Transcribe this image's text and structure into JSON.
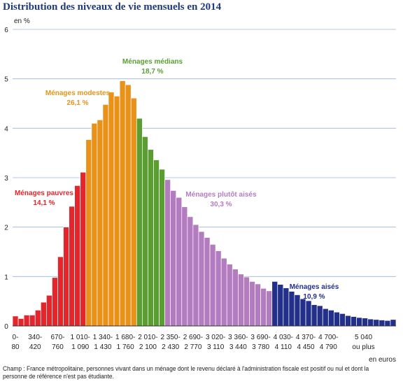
{
  "title": "Distribution des niveaux de vie mensuels en 2014",
  "note": "Champ : France métropolitaine, personnes vivant dans un ménage dont le revenu déclaré à l'administration fiscale est positif ou nul et dont la personne de référence n'est pas étudiante.",
  "chart_data": {
    "type": "bar",
    "ylabel": "en %",
    "xlabel": "en euros",
    "ylim": [
      0,
      6
    ],
    "yticks": [
      0,
      1,
      2,
      3,
      4,
      5,
      6
    ],
    "grid": true,
    "colors": {
      "pauvres": "#e2262b",
      "modestes": "#e8921a",
      "medians": "#5a9e32",
      "plutot_aises": "#b47cc0",
      "aises": "#23308a",
      "grid": "#9ab6d6",
      "title": "#1f3a7a"
    },
    "groups": [
      {
        "key": "pauvres",
        "name": "Ménages pauvres",
        "share": "14,1 %",
        "start": 0,
        "end": 12
      },
      {
        "key": "modestes",
        "name": "Ménages modestes",
        "share": "26,1 %",
        "start": 13,
        "end": 21
      },
      {
        "key": "medians",
        "name": "Ménages médians",
        "share": "18,7 %",
        "start": 22,
        "end": 26
      },
      {
        "key": "plutot_aises",
        "name": "Ménages plutôt aisés",
        "share": "30,3 %",
        "start": 27,
        "end": 45
      },
      {
        "key": "aises",
        "name": "Ménages aisés",
        "share": "10,9 %",
        "start": 46,
        "end": 67
      }
    ],
    "values": [
      0.2,
      0.15,
      0.22,
      0.22,
      0.32,
      0.48,
      0.62,
      0.98,
      1.4,
      2.0,
      2.42,
      2.84,
      3.11,
      3.77,
      4.1,
      4.17,
      4.48,
      4.73,
      4.65,
      4.96,
      4.88,
      4.61,
      4.2,
      3.83,
      3.57,
      3.36,
      3.17,
      2.96,
      2.74,
      2.6,
      2.41,
      2.21,
      2.05,
      1.91,
      1.79,
      1.65,
      1.52,
      1.37,
      1.25,
      1.15,
      1.05,
      0.99,
      0.9,
      0.85,
      0.76,
      0.71,
      0.9,
      0.84,
      0.77,
      0.7,
      0.63,
      0.55,
      0.51,
      0.43,
      0.41,
      0.35,
      0.32,
      0.28,
      0.25,
      0.21,
      0.19,
      0.17,
      0.16,
      0.14,
      0.13,
      0.12,
      0.11,
      0.13
    ],
    "tick_labels": [
      {
        "i": 0,
        "top": "0-",
        "bottom": "80"
      },
      {
        "i": 4,
        "top": "340-",
        "bottom": "420"
      },
      {
        "i": 8,
        "top": "670-",
        "bottom": "760"
      },
      {
        "i": 12,
        "top": "1 010-",
        "bottom": "1 090"
      },
      {
        "i": 16,
        "top": "1 340-",
        "bottom": "1 430"
      },
      {
        "i": 20,
        "top": "1 680-",
        "bottom": "1 760"
      },
      {
        "i": 24,
        "top": "2 010-",
        "bottom": "2 100"
      },
      {
        "i": 28,
        "top": "2 350-",
        "bottom": "2 430"
      },
      {
        "i": 32,
        "top": "2 690-",
        "bottom": "2 770"
      },
      {
        "i": 36,
        "top": "3 020-",
        "bottom": "3 110"
      },
      {
        "i": 40,
        "top": "3 360-",
        "bottom": "3 440"
      },
      {
        "i": 44,
        "top": "3 690-",
        "bottom": "3 780"
      },
      {
        "i": 48,
        "top": "4 030-",
        "bottom": "4 110"
      },
      {
        "i": 52,
        "top": "4 370-",
        "bottom": "4 450"
      },
      {
        "i": 56,
        "top": "4 700-",
        "bottom": "4 790"
      },
      {
        "i": 60,
        "top": "5 040",
        "bottom": "ou plus"
      }
    ]
  }
}
